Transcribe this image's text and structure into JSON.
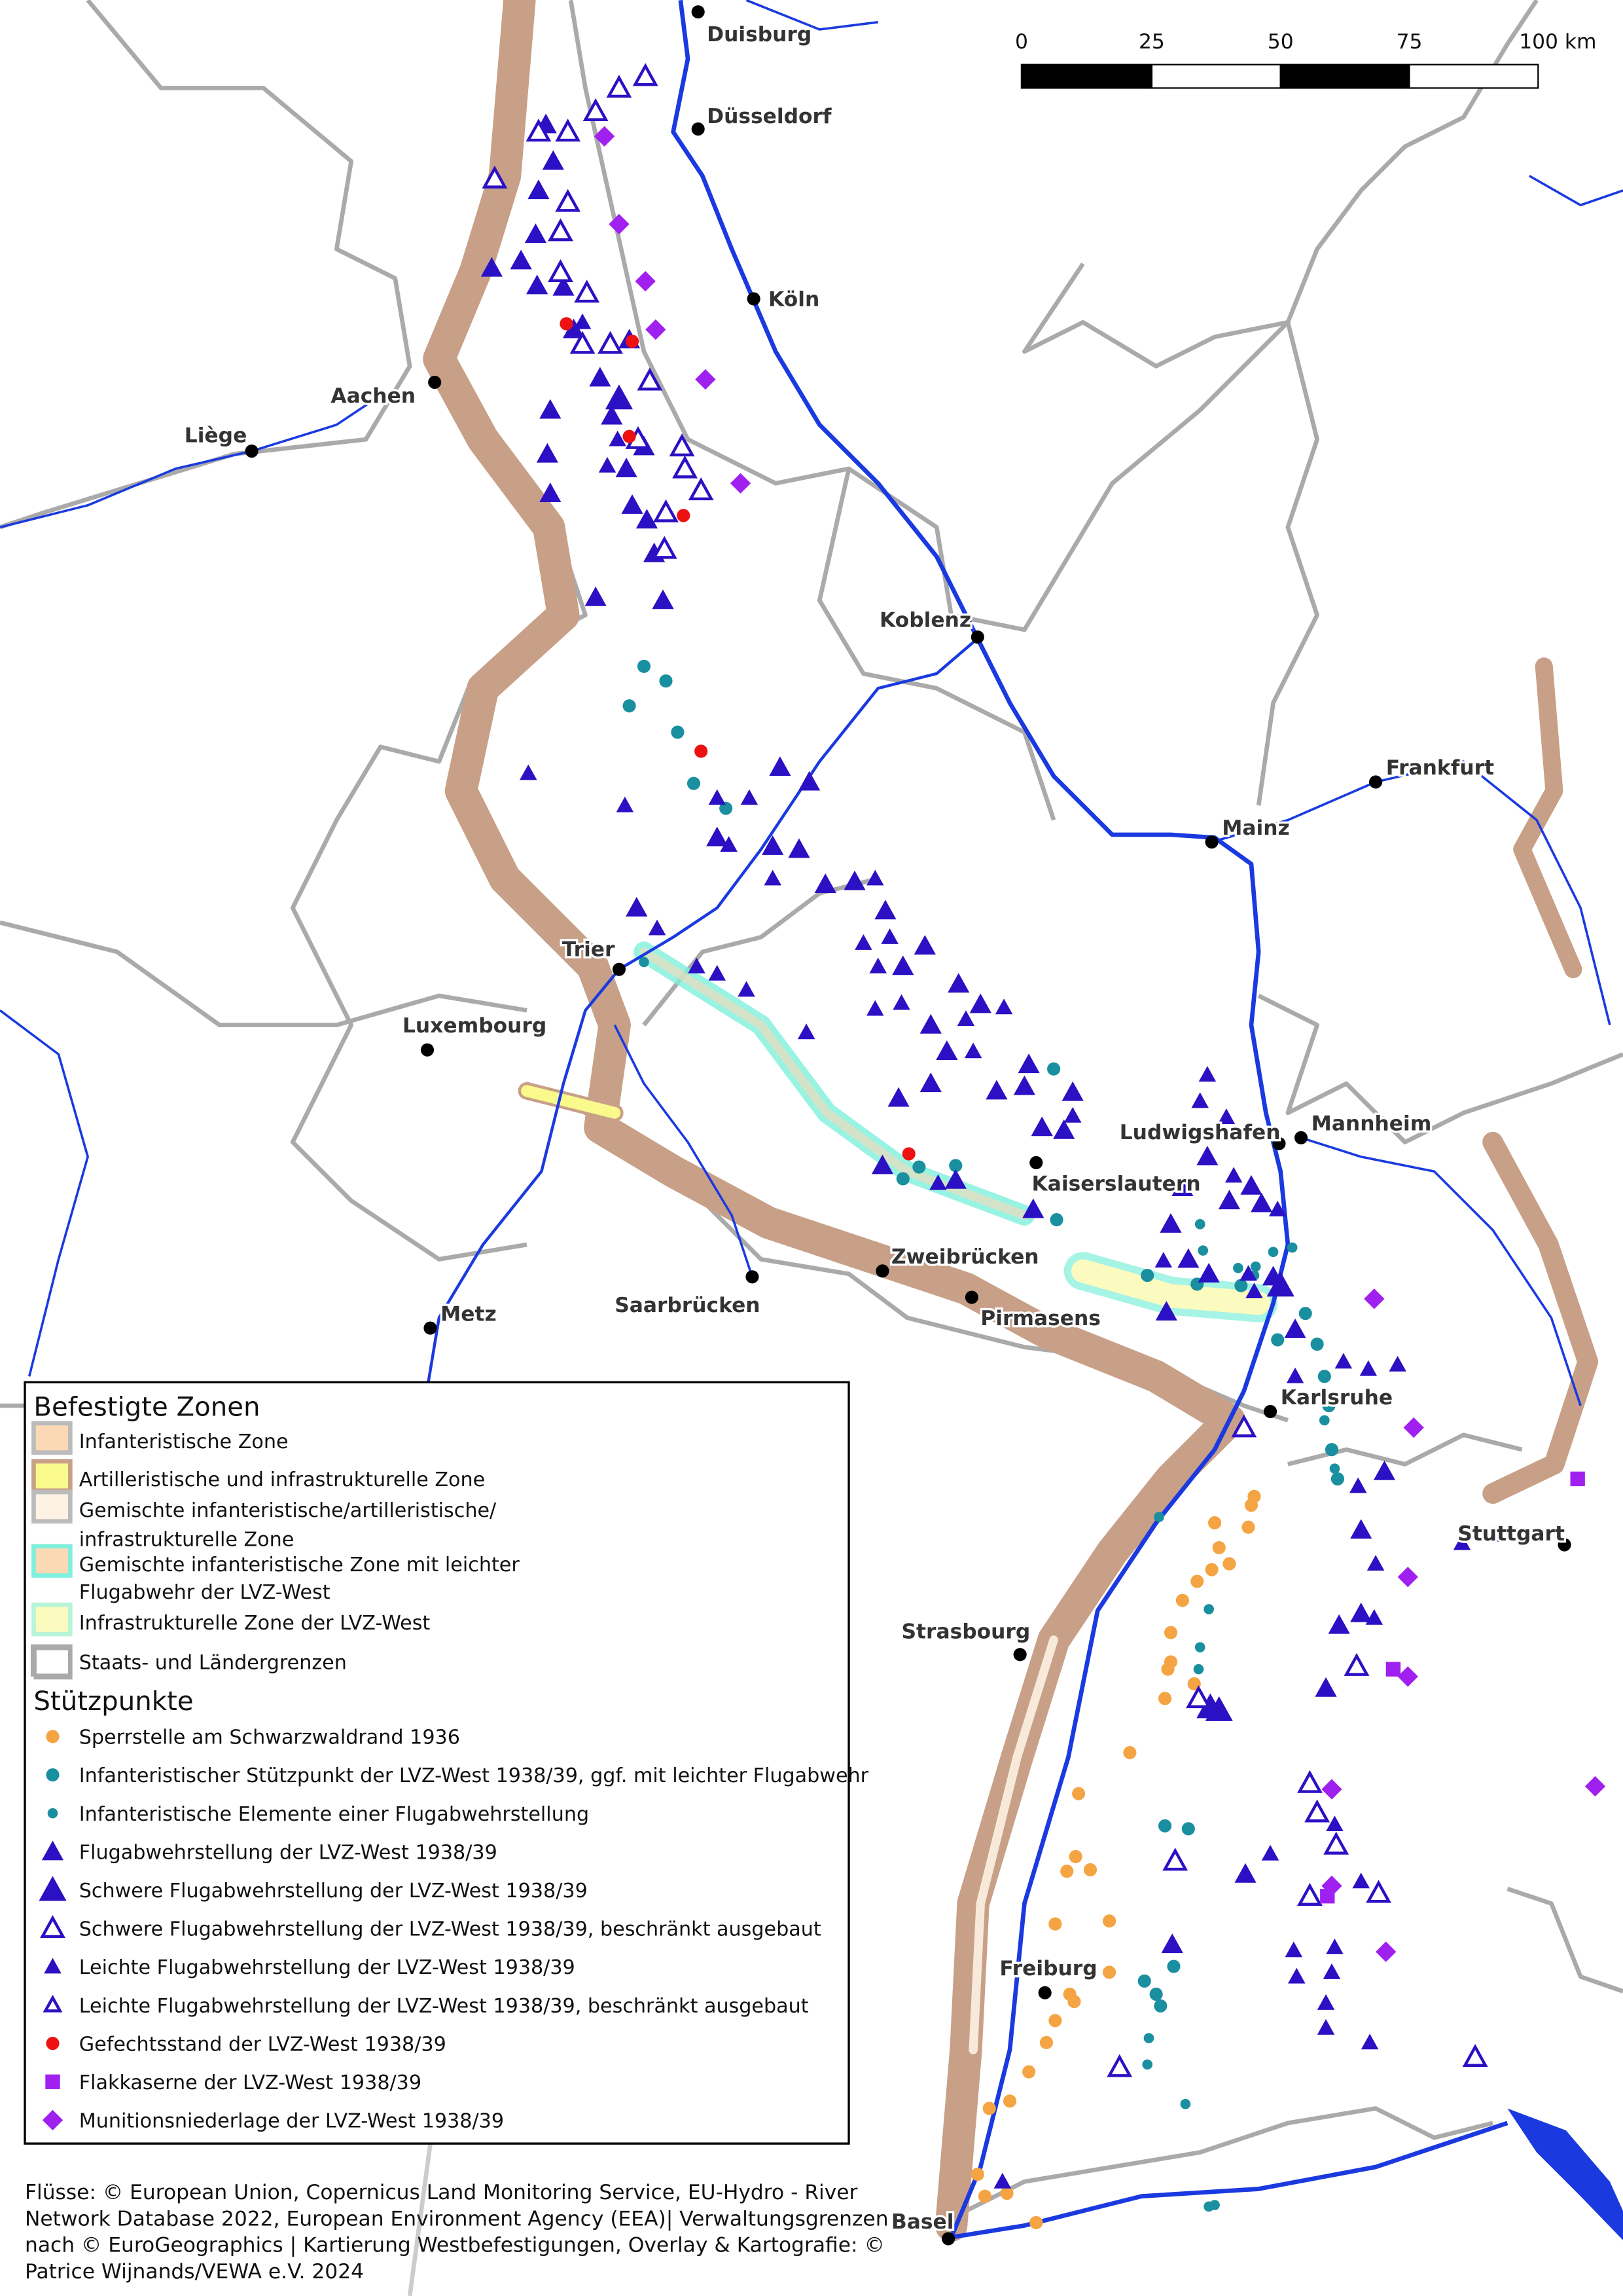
{
  "cities": [
    "Duisburg",
    "Düsseldorf",
    "Köln",
    "Aachen",
    "Liège",
    "Koblenz",
    "Frankfurt",
    "Mainz",
    "Trier",
    "Luxembourg",
    "Ludwigshafen",
    "Mannheim",
    "Kaiserslautern",
    "Zweibrücken",
    "Pirmasens",
    "Saarbrücken",
    "Metz",
    "Karlsruhe",
    "Stuttgart",
    "Strasbourg",
    "Freiburg",
    "Basel"
  ],
  "scalebar": {
    "labels": [
      "0",
      "25",
      "50",
      "75",
      "100 km"
    ]
  },
  "legend": {
    "zones_title": "Befestigte Zonen",
    "zones": [
      {
        "label": "Infanteristische Zone",
        "fill": "#fcd9b5",
        "stroke": "#bbbbbb"
      },
      {
        "label": "Artilleristische und infrastrukturelle Zone",
        "fill": "#fafa8c",
        "stroke": "#c8a088"
      },
      {
        "label": "Gemischte infanteristische/artilleristische/",
        "label2": "infrastrukturelle Zone",
        "fill": "#fdf2e4",
        "stroke": "#bbbbbb"
      },
      {
        "label": "Gemischte infanteristische Zone mit leichter",
        "label2": "Flugabwehr der LVZ-West",
        "fill": "#fcd9b5",
        "stroke": "#7ff0dc"
      },
      {
        "label": "Infrastrukturelle Zone der LVZ-West",
        "fill": "#fbfbc0",
        "stroke": "#b8f5d8"
      },
      {
        "label": "Staats- und Ländergrenzen",
        "fill": "none",
        "stroke": "#aaaaaa"
      }
    ],
    "points_title": "Stützpunkte",
    "points": [
      {
        "label": "Sperrstelle am Schwarzwaldrand 1936",
        "symbol": "orange-circle",
        "color": "#f4a443"
      },
      {
        "label": "Infanteristischer Stützpunkt der LVZ-West 1938/39, ggf. mit leichter Flugabwehr",
        "symbol": "teal-circle",
        "color": "#1a8fa0"
      },
      {
        "label": "Infanteristische Elemente einer Flugabwehrstellung",
        "symbol": "small-teal-circle",
        "color": "#1a8fa0"
      },
      {
        "label": "Flugabwehrstellung der LVZ-West 1938/39",
        "symbol": "filled-triangle",
        "color": "#2b10c4"
      },
      {
        "label": "Schwere Flugabwehrstellung der LVZ-West 1938/39",
        "symbol": "large-filled-triangle",
        "color": "#2b10c4"
      },
      {
        "label": "Schwere Flugabwehrstellung der LVZ-West 1938/39, beschränkt ausgebaut",
        "symbol": "large-open-triangle",
        "color": "#2b10c4"
      },
      {
        "label": "Leichte Flugabwehrstellung der LVZ-West 1938/39",
        "symbol": "small-filled-triangle",
        "color": "#2b10c4"
      },
      {
        "label": "Leichte Flugabwehrstellung der LVZ-West 1938/39, beschränkt ausgebaut",
        "symbol": "small-open-triangle",
        "color": "#2b10c4"
      },
      {
        "label": "Gefechtsstand der LVZ-West 1938/39",
        "symbol": "red-circle",
        "color": "#ee1111"
      },
      {
        "label": "Flakkaserne der LVZ-West 1938/39",
        "symbol": "square",
        "color": "#a020f0"
      },
      {
        "label": "Munitionsniederlage der LVZ-West 1938/39",
        "symbol": "diamond",
        "color": "#a020f0"
      }
    ]
  },
  "attribution": [
    "Flüsse: © European Union, Copernicus Land Monitoring Service, EU-Hydro - River",
    "Network Database 2022, European Environment Agency (EEA)| Verwaltungsgrenzen",
    "nach © EuroGeographics | Kartierung Westbefestigungen, Overlay & Kartografie: ©",
    "Patrice Wijnands/VEWA e.V. 2024"
  ],
  "colors": {
    "river": "#1a3ae0",
    "border": "#aaaaaa",
    "zone_yellow": "#fafa8c",
    "zone_outline": "#c8a088",
    "zone_cyan": "#7ff0dc"
  }
}
